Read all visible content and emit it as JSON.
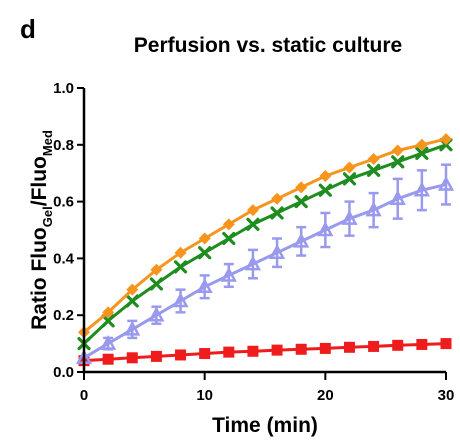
{
  "panel_label": "d",
  "chart_data": {
    "type": "line",
    "title": "Perfusion vs. static culture",
    "xlabel": "Time (min)",
    "ylabel": {
      "main": "Ratio Fluo",
      "sub1": "Gel",
      "mid": "/Fluo",
      "sub2": "Med"
    },
    "xlim": [
      0,
      30
    ],
    "ylim": [
      0,
      1.0
    ],
    "xticks": [
      "0",
      "10",
      "20",
      "30"
    ],
    "yticks": [
      "0.0",
      "0.2",
      "0.4",
      "0.6",
      "0.8",
      "1.0"
    ],
    "grid": false,
    "legend": "none",
    "x": [
      0,
      2,
      4,
      6,
      8,
      10,
      12,
      14,
      16,
      18,
      20,
      22,
      24,
      26,
      28,
      30
    ],
    "series": [
      {
        "marker": "diamond",
        "color": "#f7941d",
        "values": [
          0.14,
          0.21,
          0.29,
          0.36,
          0.42,
          0.47,
          0.52,
          0.57,
          0.61,
          0.65,
          0.69,
          0.72,
          0.75,
          0.78,
          0.8,
          0.82
        ]
      },
      {
        "marker": "cross",
        "color": "#1e8c1e",
        "values": [
          0.1,
          0.18,
          0.25,
          0.31,
          0.37,
          0.42,
          0.47,
          0.52,
          0.56,
          0.6,
          0.64,
          0.68,
          0.71,
          0.74,
          0.77,
          0.8
        ]
      },
      {
        "marker": "triangle",
        "color": "#9999ee",
        "values": [
          0.05,
          0.1,
          0.15,
          0.2,
          0.25,
          0.3,
          0.34,
          0.38,
          0.42,
          0.46,
          0.5,
          0.54,
          0.57,
          0.61,
          0.64,
          0.66
        ],
        "errors": [
          0.0,
          0.02,
          0.03,
          0.03,
          0.04,
          0.04,
          0.04,
          0.05,
          0.05,
          0.05,
          0.06,
          0.06,
          0.06,
          0.07,
          0.07,
          0.07
        ]
      },
      {
        "marker": "square",
        "color": "#ee1c1c",
        "values": [
          0.04,
          0.045,
          0.05,
          0.055,
          0.06,
          0.065,
          0.07,
          0.073,
          0.077,
          0.08,
          0.083,
          0.087,
          0.09,
          0.094,
          0.097,
          0.1
        ]
      }
    ]
  }
}
